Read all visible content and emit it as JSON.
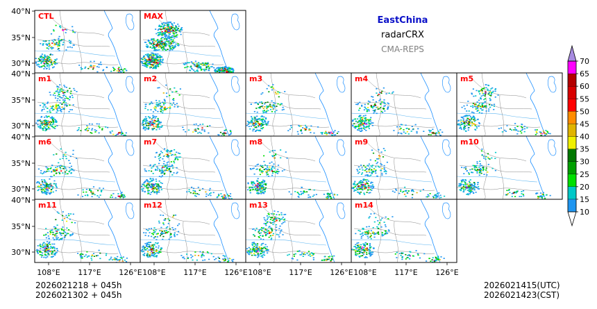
{
  "header": {
    "region": "EastChina",
    "product": "radarCRX",
    "system": "CMA-REPS"
  },
  "footer": {
    "init_line1": "2026021218  +  045h",
    "init_line2": "2026021302  +  045h",
    "valid_utc": "2026021415(UTC)",
    "valid_cst": "2026021423(CST)"
  },
  "chart_data": {
    "type": "heatmap",
    "title": "EastChina radarCRX CMA-REPS",
    "panels": [
      "CTL",
      "MAX",
      "m1",
      "m2",
      "m3",
      "m4",
      "m5",
      "m6",
      "m7",
      "m8",
      "m9",
      "m10",
      "m11",
      "m12",
      "m13",
      "m14"
    ],
    "xticks": [
      "108°E",
      "117°E",
      "126°E"
    ],
    "yticks": [
      "40°N",
      "35°N",
      "30°N"
    ],
    "colorbar": {
      "levels": [
        10,
        15,
        20,
        25,
        30,
        35,
        40,
        45,
        50,
        55,
        60,
        65,
        70
      ],
      "colors": [
        "#1f96f0",
        "#00c8c8",
        "#00e000",
        "#00a000",
        "#007800",
        "#f0f000",
        "#e0b400",
        "#ff8c00",
        "#ff0000",
        "#d80000",
        "#b40000",
        "#ff00ff",
        "#9600b4",
        "#a78be0"
      ]
    }
  }
}
